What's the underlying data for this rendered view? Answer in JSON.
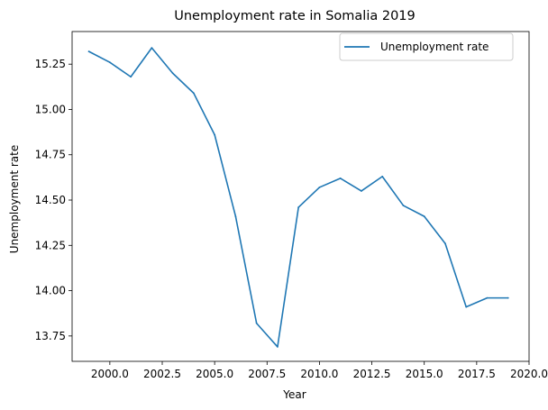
{
  "chart_data": {
    "type": "line",
    "title": "Unemployment rate in Somalia 2019",
    "xlabel": "Year",
    "ylabel": "Unemployment rate",
    "xlim": [
      1998.2,
      2020.0
    ],
    "ylim": [
      13.61,
      15.43
    ],
    "xticks": [
      2000.0,
      2002.5,
      2005.0,
      2007.5,
      2010.0,
      2012.5,
      2015.0,
      2017.5,
      2020.0
    ],
    "xtick_labels": [
      "2000.0",
      "2002.5",
      "2005.0",
      "2007.5",
      "2010.0",
      "2012.5",
      "2015.0",
      "2017.5",
      "2020.0"
    ],
    "yticks": [
      13.75,
      14.0,
      14.25,
      14.5,
      14.75,
      15.0,
      15.25
    ],
    "ytick_labels": [
      "13.75",
      "14.00",
      "14.25",
      "14.50",
      "14.75",
      "15.00",
      "15.25"
    ],
    "grid": false,
    "legend_position": "top-right",
    "series": [
      {
        "name": "Unemployment rate",
        "color": "#1f77b4",
        "x": [
          1999,
          2000,
          2001,
          2002,
          2003,
          2004,
          2005,
          2006,
          2007,
          2008,
          2009,
          2010,
          2011,
          2012,
          2013,
          2014,
          2015,
          2016,
          2017,
          2018,
          2019
        ],
        "values": [
          15.32,
          15.26,
          15.18,
          15.34,
          15.2,
          15.09,
          14.86,
          14.41,
          13.82,
          13.69,
          14.46,
          14.57,
          14.62,
          14.55,
          14.63,
          14.47,
          14.41,
          14.26,
          13.91,
          13.96,
          13.96
        ]
      }
    ]
  }
}
